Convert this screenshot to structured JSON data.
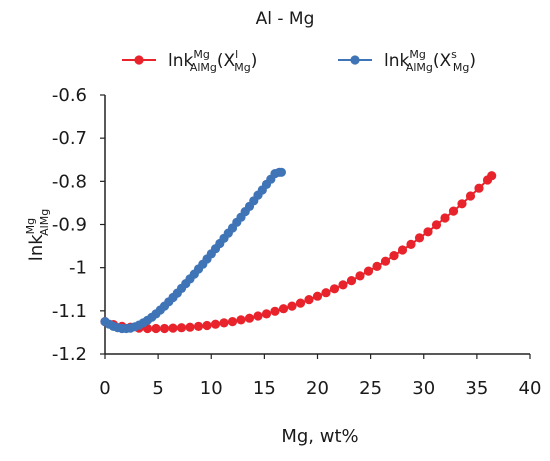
{
  "chart_data": {
    "type": "scatter",
    "title": "Al  - Mg",
    "xlabel": "Mg, wt%",
    "ylabel": {
      "base": "lnk",
      "sup": "Mg",
      "sub": "AlMg"
    },
    "xlim": [
      0,
      40
    ],
    "ylim": [
      -1.2,
      -0.6
    ],
    "xticks": [
      "0",
      "5",
      "10",
      "15",
      "20",
      "25",
      "30",
      "35",
      "40"
    ],
    "yticks": [
      "-0.6",
      "-0.7",
      "-0.8",
      "-0.9",
      "-1",
      "-1.1",
      "-1.2"
    ],
    "grid": false,
    "legend_position": "top",
    "series": [
      {
        "name": "lnk^Mg_AlMg(X^l_Mg)",
        "legend": {
          "base": "lnk",
          "sup": "Mg",
          "sub": "AlMg",
          "tail": "(X",
          "sup2": "l",
          "sub2": "Mg",
          "end": ")"
        },
        "color": "#e8232b",
        "x": [
          0.0,
          0.8,
          1.6,
          2.4,
          3.2,
          4.0,
          4.8,
          5.6,
          6.4,
          7.2,
          8.0,
          8.8,
          9.6,
          10.4,
          11.2,
          12.0,
          12.8,
          13.6,
          14.4,
          15.2,
          16.0,
          16.8,
          17.6,
          18.4,
          19.2,
          20.0,
          20.8,
          21.6,
          22.4,
          23.2,
          24.0,
          24.8,
          25.6,
          26.4,
          27.2,
          28.0,
          28.8,
          29.6,
          30.4,
          31.2,
          32.0,
          32.8,
          33.6,
          34.4,
          35.2,
          36.0,
          36.4
        ],
        "y": [
          -1.125,
          -1.132,
          -1.136,
          -1.138,
          -1.14,
          -1.141,
          -1.141,
          -1.141,
          -1.14,
          -1.139,
          -1.138,
          -1.136,
          -1.134,
          -1.131,
          -1.128,
          -1.125,
          -1.121,
          -1.117,
          -1.112,
          -1.107,
          -1.101,
          -1.095,
          -1.089,
          -1.082,
          -1.074,
          -1.066,
          -1.058,
          -1.049,
          -1.04,
          -1.03,
          -1.019,
          -1.008,
          -0.997,
          -0.985,
          -0.972,
          -0.959,
          -0.946,
          -0.931,
          -0.917,
          -0.901,
          -0.885,
          -0.869,
          -0.852,
          -0.834,
          -0.816,
          -0.797,
          -0.787
        ]
      },
      {
        "name": "lnk^Mg_AlMg(X^s_Mg)",
        "legend": {
          "base": "lnk",
          "sup": "Mg",
          "sub": "AlMg",
          "tail": "(X",
          "sup2": "s",
          "sub2": "Mg",
          "end": ")"
        },
        "color": "#3f74b7",
        "x": [
          0.0,
          0.4,
          0.8,
          1.2,
          1.6,
          2.0,
          2.4,
          2.8,
          3.2,
          3.6,
          4.0,
          4.4,
          4.8,
          5.2,
          5.6,
          6.0,
          6.4,
          6.8,
          7.2,
          7.6,
          8.0,
          8.4,
          8.8,
          9.2,
          9.6,
          10.0,
          10.4,
          10.8,
          11.2,
          11.6,
          12.0,
          12.4,
          12.8,
          13.2,
          13.6,
          14.0,
          14.4,
          14.8,
          15.2,
          15.6,
          16.0,
          16.4,
          16.6
        ],
        "y": [
          -1.125,
          -1.131,
          -1.136,
          -1.139,
          -1.141,
          -1.141,
          -1.14,
          -1.137,
          -1.133,
          -1.128,
          -1.122,
          -1.115,
          -1.107,
          -1.098,
          -1.089,
          -1.079,
          -1.069,
          -1.059,
          -1.048,
          -1.037,
          -1.026,
          -1.015,
          -1.003,
          -0.992,
          -0.98,
          -0.968,
          -0.956,
          -0.944,
          -0.932,
          -0.92,
          -0.908,
          -0.895,
          -0.883,
          -0.87,
          -0.858,
          -0.845,
          -0.832,
          -0.82,
          -0.807,
          -0.795,
          -0.782,
          -0.779,
          -0.779
        ]
      }
    ]
  }
}
